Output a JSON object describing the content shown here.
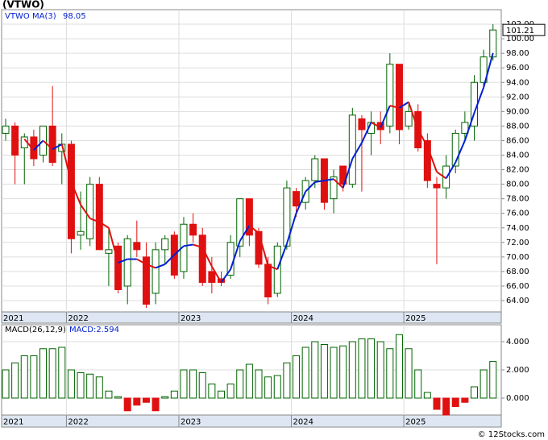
{
  "title": "(VTWO)",
  "footer": "© 12Stocks.com",
  "chart_data": [
    {
      "type": "candlestick",
      "categories": [
        "2021",
        null,
        null,
        null,
        null,
        null,
        null,
        "2022",
        null,
        null,
        null,
        null,
        null,
        null,
        null,
        null,
        null,
        null,
        null,
        "2023",
        null,
        null,
        null,
        null,
        null,
        null,
        null,
        null,
        null,
        null,
        null,
        "2024",
        null,
        null,
        null,
        null,
        null,
        null,
        null,
        null,
        null,
        null,
        null,
        "2025",
        null,
        null,
        null,
        null,
        null,
        null,
        null,
        null,
        null
      ],
      "series": [
        {
          "name": "VTWO",
          "up_color": "#006400",
          "down_color": "#e01010",
          "open": [
            87,
            88,
            85,
            86.5,
            84,
            88,
            84.5,
            85.5,
            73,
            72.5,
            80,
            70.5,
            71.5,
            66,
            72,
            70,
            65,
            71,
            73,
            68,
            74.5,
            73,
            68,
            67,
            67.5,
            71.5,
            78,
            73.5,
            69,
            65,
            71.5,
            79,
            77.5,
            80.5,
            83.5,
            78,
            82.5,
            80,
            89,
            87,
            88.5,
            88,
            96.5,
            88,
            90,
            86,
            80,
            79.5,
            82.5,
            87,
            88,
            94,
            97.5
          ],
          "high": [
            89,
            88.5,
            87,
            87.5,
            88,
            93.5,
            87,
            86,
            79,
            81,
            81,
            74,
            72,
            73,
            75,
            72,
            72,
            73,
            73.5,
            75.5,
            76,
            74,
            70,
            68,
            73,
            78,
            78,
            74,
            70,
            72,
            80.5,
            79.5,
            81,
            84,
            83.5,
            82,
            82.5,
            90.5,
            89.5,
            90,
            90,
            98,
            96.5,
            91,
            91,
            87,
            81,
            84,
            87.5,
            90,
            95,
            98.5,
            102
          ],
          "low": [
            86,
            80,
            80,
            82.5,
            83,
            82.5,
            80,
            70.5,
            71,
            71.5,
            71,
            66,
            65,
            63.5,
            70,
            63,
            63.5,
            69,
            67,
            67,
            72,
            66,
            65,
            66,
            67,
            70,
            71.5,
            68.5,
            63.5,
            64.5,
            71,
            75.5,
            76.5,
            79.5,
            76.5,
            76,
            79,
            79.5,
            79,
            84,
            85.5,
            87,
            85.5,
            87.5,
            84.5,
            79.5,
            69,
            78,
            81.5,
            86,
            86,
            93.5,
            97
          ],
          "close": [
            88,
            84,
            86.5,
            83.5,
            88,
            83,
            85.5,
            72.5,
            73.5,
            80,
            71,
            71,
            65.5,
            72.5,
            71,
            63.5,
            71,
            72.5,
            67.5,
            74.5,
            73,
            66.5,
            66.5,
            66.5,
            72,
            78,
            73,
            69,
            64.5,
            71.5,
            79.5,
            77,
            80.5,
            83.5,
            77.5,
            81,
            80,
            89.5,
            87.5,
            88.5,
            87.5,
            96.5,
            87.5,
            90,
            85,
            80.5,
            79.5,
            82.5,
            87,
            88.5,
            94,
            97.5,
            101.21
          ]
        },
        {
          "name": "MA(3)",
          "up_color": "#0020d0",
          "down_color": "#e01010",
          "values": [
            null,
            null,
            86.2,
            84.7,
            86,
            84.8,
            85.5,
            80.3,
            77.2,
            75.3,
            74.8,
            74,
            69.2,
            69.7,
            69.7,
            69,
            68.5,
            69,
            70.3,
            71.5,
            71.7,
            71.3,
            68.7,
            66.5,
            68.3,
            72.2,
            74.3,
            73.3,
            68.8,
            68.3,
            71.8,
            76,
            79,
            80.3,
            80.5,
            80.7,
            79.5,
            83.5,
            85.7,
            88.5,
            87.8,
            90.8,
            90.5,
            91.3,
            87.5,
            85.2,
            81.7,
            80.8,
            83,
            86,
            89.8,
            93.3,
            98.05
          ]
        }
      ],
      "ylim": [
        62.45,
        104
      ],
      "yticks": [
        {
          "value": 64,
          "label": "64.00"
        },
        {
          "value": 66,
          "label": "66.00"
        },
        {
          "value": 68,
          "label": "68.00"
        },
        {
          "value": 70,
          "label": "70.00"
        },
        {
          "value": 72,
          "label": "72.00"
        },
        {
          "value": 74,
          "label": "74.00"
        },
        {
          "value": 76,
          "label": "76.00"
        },
        {
          "value": 78,
          "label": "78.00"
        },
        {
          "value": 80,
          "label": "80.00"
        },
        {
          "value": 82,
          "label": "82.00"
        },
        {
          "value": 84,
          "label": "84.00"
        },
        {
          "value": 86,
          "label": "86.00"
        },
        {
          "value": 88,
          "label": "88.00"
        },
        {
          "value": 90,
          "label": "90.00"
        },
        {
          "value": 92,
          "label": "92.00"
        },
        {
          "value": 94,
          "label": "94.00"
        },
        {
          "value": 96,
          "label": "96.00"
        },
        {
          "value": 98,
          "label": "98.00"
        },
        {
          "value": 100,
          "label": "100.00"
        },
        {
          "value": 102,
          "label": "102.00"
        }
      ],
      "grid": true
    },
    {
      "type": "bar",
      "categories": [
        "2021",
        null,
        null,
        null,
        null,
        null,
        null,
        "2022",
        null,
        null,
        null,
        null,
        null,
        null,
        null,
        null,
        null,
        null,
        null,
        "2023",
        null,
        null,
        null,
        null,
        null,
        null,
        null,
        null,
        null,
        null,
        null,
        "2024",
        null,
        null,
        null,
        null,
        null,
        null,
        null,
        null,
        null,
        null,
        null,
        "2025",
        null,
        null,
        null,
        null,
        null,
        null,
        null,
        null,
        null
      ],
      "series": [
        {
          "name": "MACD(26,12,9)",
          "value_prefix": "MACD:",
          "up_color": "#006400",
          "down_color": "#e01010",
          "values": [
            2.0,
            2.5,
            3.0,
            3.0,
            3.5,
            3.5,
            3.6,
            2.0,
            1.8,
            1.7,
            1.5,
            0.5,
            0.1,
            -0.9,
            -0.5,
            -0.3,
            -0.9,
            0.1,
            0.5,
            2.0,
            2.0,
            1.8,
            1.0,
            0.5,
            1.0,
            2.0,
            2.4,
            2.0,
            1.5,
            1.6,
            2.5,
            3.0,
            3.6,
            4.0,
            3.8,
            3.6,
            3.7,
            4.0,
            4.2,
            4.2,
            4.0,
            3.5,
            4.5,
            3.5,
            2.0,
            0.4,
            -0.8,
            -1.2,
            -0.6,
            -0.3,
            0.8,
            2.0,
            2.594
          ]
        }
      ],
      "ylim": [
        -1.2,
        5.2
      ],
      "yticks": [
        {
          "value": 4,
          "label": "4.000"
        },
        {
          "value": 2,
          "label": "2.000"
        },
        {
          "value": 0,
          "label": "0.000"
        }
      ],
      "grid": true
    }
  ]
}
